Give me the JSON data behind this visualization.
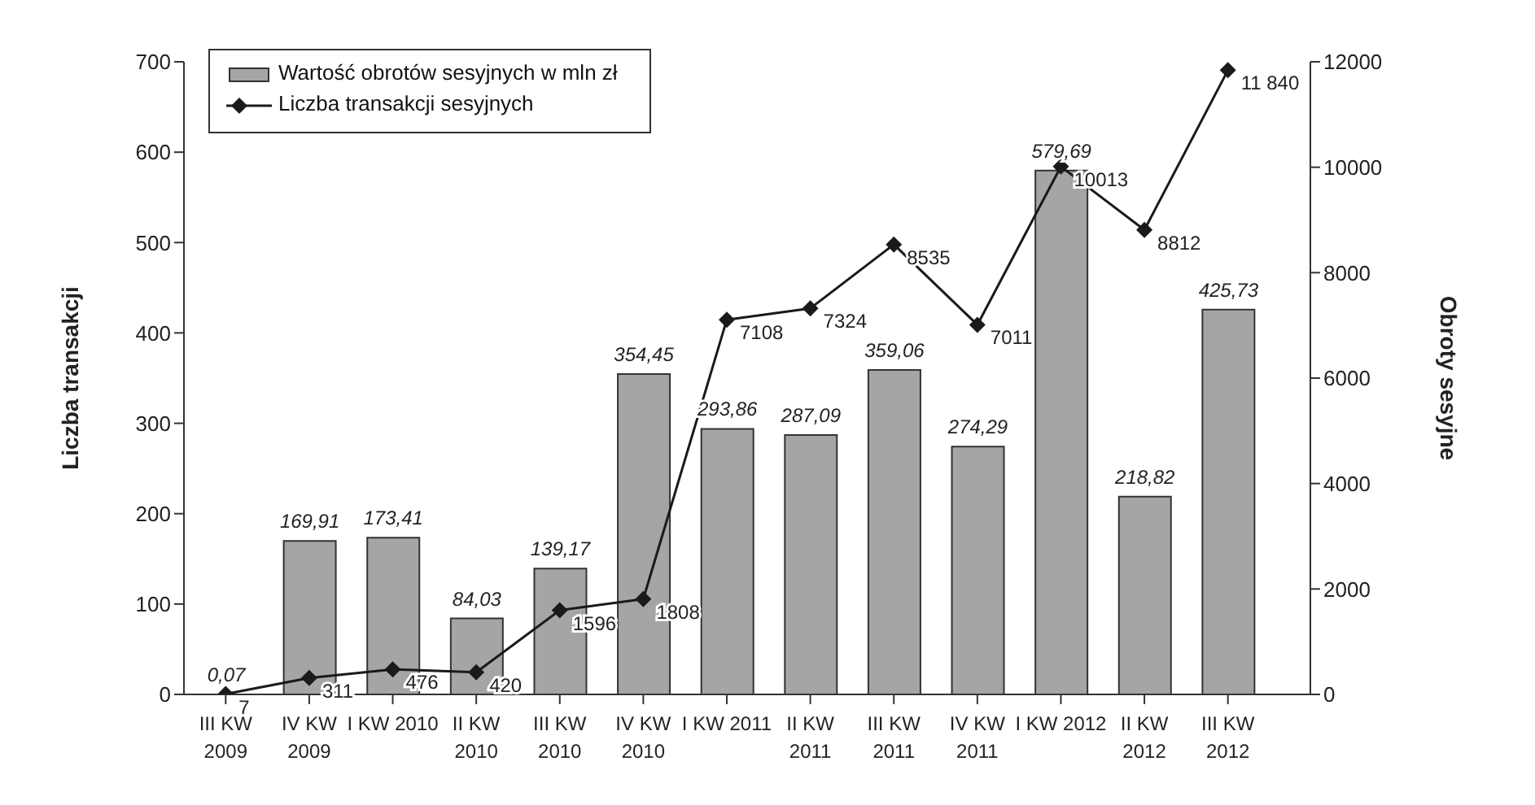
{
  "chart_data": {
    "type": "bar",
    "categories": [
      "III KW\n2009",
      "IV KW\n2009",
      "I KW 2010",
      "II KW\n2010",
      "III KW\n2010",
      "IV KW\n2010",
      "I KW 2011",
      "II KW\n2011",
      "III KW\n2011",
      "IV KW\n2011",
      "I KW 2012",
      "II KW\n2012",
      "III KW\n2012"
    ],
    "series": [
      {
        "name": "Wartość obrotów sesyjnych w mln zł",
        "axis": "y",
        "color": "#a5a5a7",
        "values": [
          0.07,
          169.91,
          173.41,
          84.03,
          139.17,
          354.45,
          293.86,
          287.09,
          359.06,
          274.29,
          579.69,
          218.82,
          425.73
        ],
        "value_labels": [
          "0,07",
          "169,91",
          "173,41",
          "84,03",
          "139,17",
          "354,45",
          "293,86",
          "287,09",
          "359,06",
          "274,29",
          "579,69",
          "218,82",
          "425,73"
        ]
      },
      {
        "name": "Liczba transakcji sesyjnych",
        "type": "line",
        "axis": "y2",
        "color": "#1a1a1a",
        "values": [
          7,
          311,
          476,
          420,
          1596,
          1808,
          7108,
          7324,
          8535,
          7011,
          10013,
          8812,
          11840
        ],
        "value_labels": [
          "7",
          "311",
          "476",
          "420",
          "1596",
          "1808",
          "7108",
          "7324",
          "8535",
          "7011",
          "10013",
          "8812",
          "11 840"
        ]
      }
    ],
    "ylabel": "Liczba transakcji",
    "y2label": "Obroty sesyjne",
    "ylim": [
      0,
      700
    ],
    "yticks": [
      0,
      100,
      200,
      300,
      400,
      500,
      600,
      700
    ],
    "y2lim": [
      0,
      12000
    ],
    "y2ticks": [
      0,
      2000,
      4000,
      6000,
      8000,
      10000,
      12000
    ],
    "legend": "top left",
    "marker": "diamond",
    "line_style": "solid",
    "grid": false
  }
}
